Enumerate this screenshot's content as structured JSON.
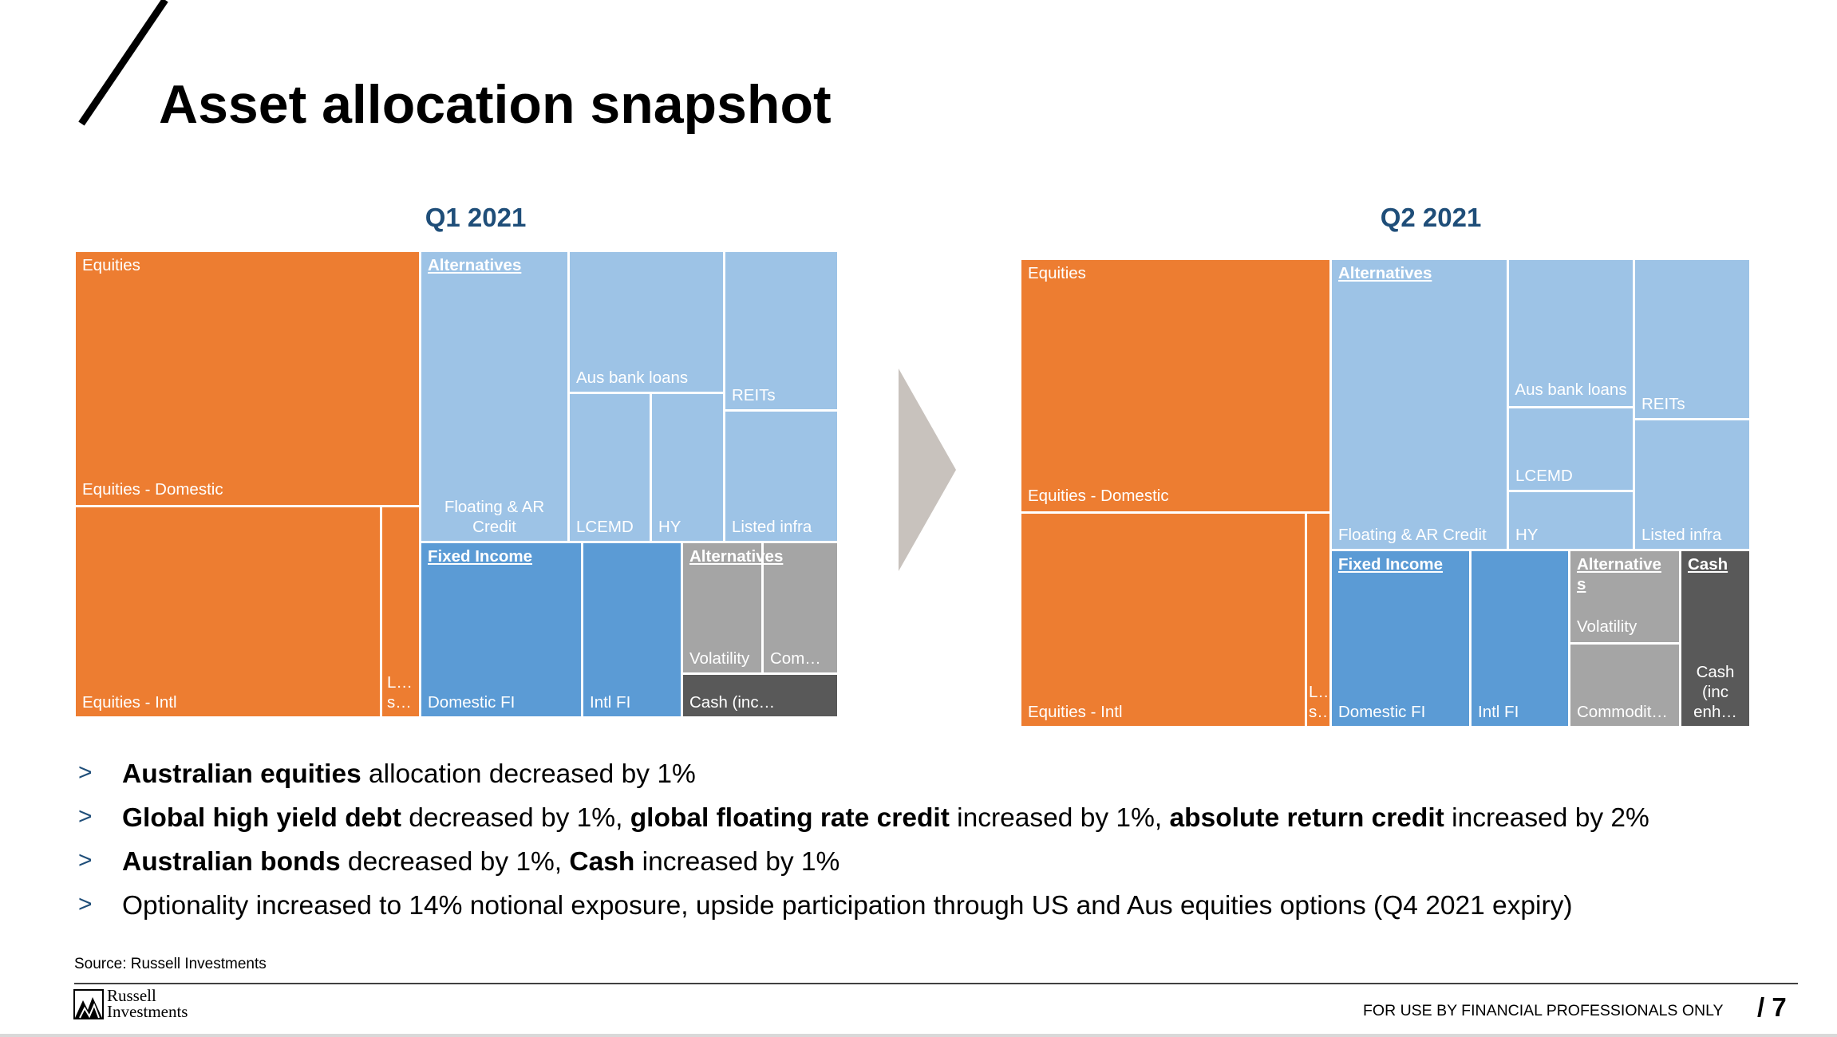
{
  "title": "Asset allocation snapshot",
  "q1": {
    "label": "Q1 2021",
    "cells": {
      "equities": "Equities",
      "equities_domestic": "Equities - Domestic",
      "equities_intl": "Equities - Intl",
      "equities_other_top": "L…",
      "equities_other_bottom": "s…",
      "alternatives": "Alternatives",
      "floating_ar_credit": "Floating & AR Credit",
      "aus_bank_loans": "Aus bank loans",
      "reits": "REITs",
      "lcemd": "LCEMD",
      "hy": "HY",
      "listed_infra": "Listed infra",
      "fixed_income": "Fixed Income",
      "domestic_fi": "Domestic FI",
      "intl_fi": "Intl FI",
      "alternatives_2": "Alternatives",
      "volatility": "Volatility",
      "commodities": "Com…",
      "cash": "Cash (inc…"
    }
  },
  "q2": {
    "label": "Q2 2021",
    "cells": {
      "equities": "Equities",
      "equities_domestic": "Equities - Domestic",
      "equities_intl": "Equities - Intl",
      "equities_other_top": "L…",
      "equities_other_bottom": "s…",
      "alternatives": "Alternatives",
      "floating_ar_credit": "Floating & AR Credit",
      "aus_bank_loans": "Aus bank loans",
      "reits": "REITs",
      "lcemd": "LCEMD",
      "hy": "HY",
      "listed_infra": "Listed infra",
      "fixed_income": "Fixed Income",
      "domestic_fi": "Domestic FI",
      "intl_fi": "Intl FI",
      "alternatives_2": "Alternatives",
      "volatility": "Volatility",
      "commodities": "Commodit…",
      "cash_header": "Cash",
      "cash": "Cash (inc enh…"
    }
  },
  "bullets": [
    {
      "marker": ">",
      "parts": [
        {
          "t": "Australian equities",
          "b": true
        },
        {
          "t": " allocation decreased by 1%",
          "b": false
        }
      ]
    },
    {
      "marker": ">",
      "parts": [
        {
          "t": "Global high yield debt",
          "b": true
        },
        {
          "t": " decreased by 1%, ",
          "b": false
        },
        {
          "t": "global floating rate credit",
          "b": true
        },
        {
          "t": " increased by 1%, ",
          "b": false
        },
        {
          "t": "absolute return credit",
          "b": true
        },
        {
          "t": " increased by 2%",
          "b": false
        }
      ]
    },
    {
      "marker": ">",
      "parts": [
        {
          "t": "Australian bonds",
          "b": true
        },
        {
          "t": " decreased by 1%, ",
          "b": false
        },
        {
          "t": "Cash",
          "b": true
        },
        {
          "t": " increased by 1%",
          "b": false
        }
      ]
    },
    {
      "marker": ">",
      "parts": [
        {
          "t": "Optionality increased to 14% notional exposure, upside participation through US and Aus equities options (Q4 2021 expiry)",
          "b": false
        }
      ]
    }
  ],
  "source": "Source: Russell Investments",
  "logo": {
    "line1": "Russell",
    "line2": "Investments"
  },
  "disclaimer": "FOR USE BY FINANCIAL PROFESSIONALS ONLY",
  "page_number": "/ 7",
  "colors": {
    "equities": "#ed7d31",
    "alternatives": "#9dc3e6",
    "fixed_income": "#5b9bd5",
    "alternatives_liquid": "#a5a5a5",
    "cash": "#595959",
    "heading_blue": "#1f4e79"
  }
}
